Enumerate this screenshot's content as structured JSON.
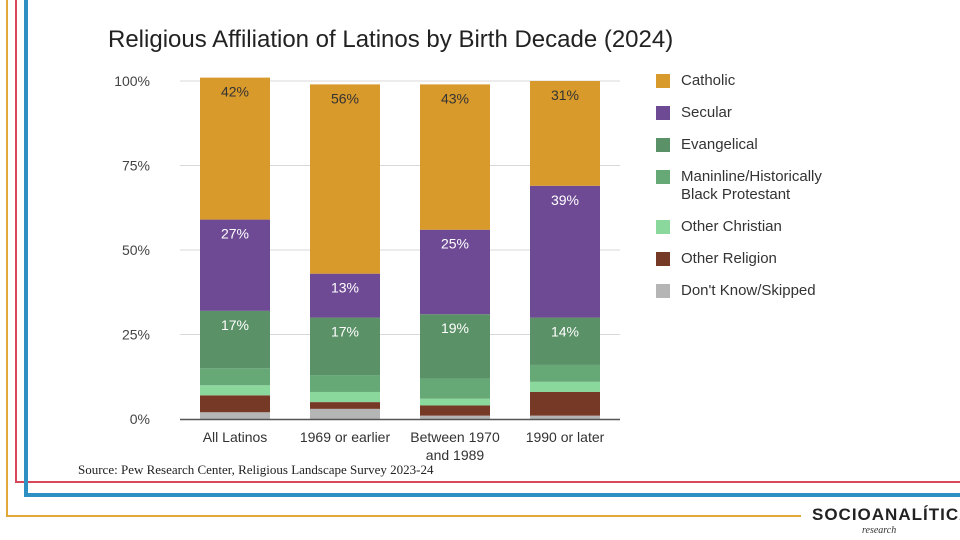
{
  "chart_data": {
    "type": "bar",
    "stacked": true,
    "title": "Religious Affiliation of Latinos by Birth Decade (2024)",
    "xlabel": "",
    "ylabel": "",
    "ylim": [
      0,
      100
    ],
    "yticks": [
      "0%",
      "25%",
      "50%",
      "75%",
      "100%"
    ],
    "grid": true,
    "legend_position": "right",
    "categories": [
      "All Latinos",
      "1969 or earlier",
      "Between 1970 and 1989",
      "1990 or later"
    ],
    "category_lines": [
      [
        "All Latinos"
      ],
      [
        "1969 or earlier"
      ],
      [
        "Between 1970",
        "and 1989"
      ],
      [
        "1990 or later"
      ]
    ],
    "series": [
      {
        "name": "Catholic",
        "color": "#D99A2C",
        "values": [
          42,
          56,
          43,
          31
        ],
        "labels": [
          "42%",
          "56%",
          "43%",
          "31%"
        ]
      },
      {
        "name": "Secular",
        "color": "#6F4A94",
        "values": [
          27,
          13,
          25,
          39
        ],
        "labels": [
          "27%",
          "13%",
          "25%",
          "39%"
        ]
      },
      {
        "name": "Evangelical",
        "color": "#5A9167",
        "values": [
          17,
          17,
          19,
          14
        ],
        "labels": [
          "17%",
          "17%",
          "19%",
          "14%"
        ]
      },
      {
        "name": "Maninline/Historically Black Protestant",
        "color": "#66A876",
        "values": [
          5,
          5,
          6,
          5
        ]
      },
      {
        "name": "Other Christian",
        "color": "#8AD89B",
        "values": [
          3,
          3,
          2,
          3
        ]
      },
      {
        "name": "Other Religion",
        "color": "#763925",
        "values": [
          5,
          2,
          3,
          7
        ]
      },
      {
        "name": "Don't Know/Skipped",
        "color": "#B5B5B5",
        "values": [
          2,
          3,
          1,
          1
        ]
      }
    ]
  },
  "legend_lines": [
    [
      "Catholic"
    ],
    [
      "Secular"
    ],
    [
      "Evangelical"
    ],
    [
      "Maninline/Historically",
      "Black Protestant"
    ],
    [
      "Other Christian"
    ],
    [
      "Other Religion"
    ],
    [
      "Don't Know/Skipped"
    ]
  ],
  "source": "Source: Pew Research Center, Religious Landscape Survey 2023-24",
  "logo": {
    "text": "SOCIOANALÍTICA",
    "sub": "research"
  }
}
